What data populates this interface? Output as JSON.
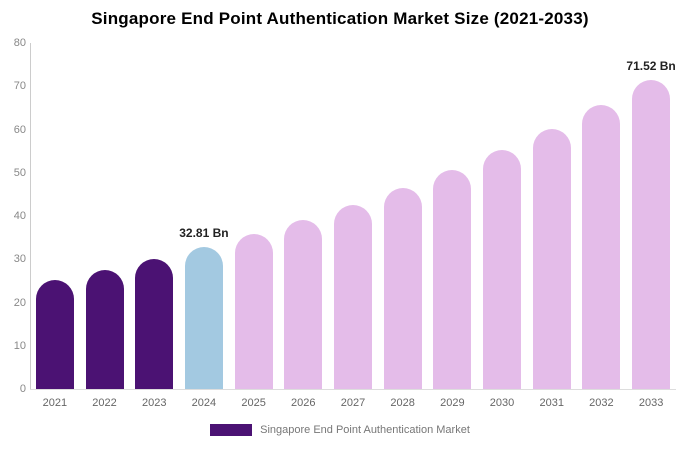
{
  "chart_data": {
    "type": "bar",
    "title": "Singapore End Point Authentication Market Size (2021-2033)",
    "categories": [
      "2021",
      "2022",
      "2023",
      "2024",
      "2025",
      "2026",
      "2027",
      "2028",
      "2029",
      "2030",
      "2031",
      "2032",
      "2033"
    ],
    "values": [
      25.3,
      27.6,
      30.1,
      32.81,
      35.8,
      39.0,
      42.6,
      46.4,
      50.6,
      55.2,
      60.2,
      65.6,
      71.52
    ],
    "unit": "Bn",
    "xlabel": "",
    "ylabel": "",
    "ylim": [
      0,
      80
    ],
    "yticks": [
      0,
      10,
      20,
      30,
      40,
      50,
      60,
      70,
      80
    ],
    "grid": false,
    "annotations": [
      {
        "category": "2024",
        "text": "32.81 Bn"
      },
      {
        "category": "2033",
        "text": "71.52 Bn"
      }
    ],
    "point_colors": [
      "#4B1273",
      "#4B1273",
      "#4B1273",
      "#A3C9E1",
      "#E4BCE9",
      "#E4BCE9",
      "#E4BCE9",
      "#E4BCE9",
      "#E4BCE9",
      "#E4BCE9",
      "#E4BCE9",
      "#E4BCE9",
      "#E4BCE9"
    ],
    "colors": {
      "historical": "#4B1273",
      "current_year": "#A3C9E1",
      "forecast": "#E4BCE9",
      "axis_line": "#cccccc",
      "tick_text": "#888888",
      "annotation_text": "#222222"
    },
    "legend": {
      "label": "Singapore End Point Authentication Market",
      "position": "bottom"
    }
  }
}
